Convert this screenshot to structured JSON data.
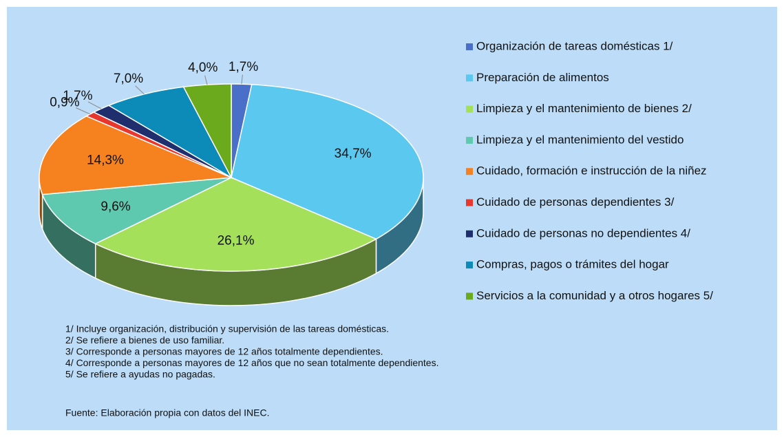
{
  "chart_data": {
    "type": "pie3d",
    "categories": [
      "Organización de tareas domésticas 1/",
      "Preparación de alimentos",
      "Limpieza y el mantenimiento de bienes 2/",
      "Limpieza y el mantenimiento del vestido",
      "Cuidado, formación e instrucción de la niñez",
      "Cuidado de personas dependientes 3/",
      "Cuidado de personas no dependientes 4/",
      "Compras, pagos o trámites del hogar",
      "Servicios a la comunidad y a otros hogares 5/"
    ],
    "values": [
      1.7,
      34.7,
      26.1,
      9.6,
      14.3,
      0.9,
      1.7,
      7.0,
      4.0
    ],
    "value_labels": [
      "1,7%",
      "34,7%",
      "26,1%",
      "9,6%",
      "14,3%",
      "0,9%",
      "1,7%",
      "7,0%",
      "4,0%"
    ],
    "colors": [
      "#4a6fc8",
      "#5bc8ef",
      "#a4e05a",
      "#5ec9ae",
      "#f5821f",
      "#e8382e",
      "#1f2f6e",
      "#0d8bb8",
      "#6aaa1c"
    ],
    "legend": "right",
    "notes": [
      "1/ Incluye organización, distribución y supervisión de las tareas domésticas.",
      "2/ Se refiere a bienes de uso familiar.",
      "3/ Corresponde a personas mayores de 12 años totalmente dependientes.",
      "4/ Corresponde a personas mayores de 12 años que no sean totalmente dependientes.",
      "5/ Se refiere a ayudas no pagadas."
    ],
    "source": "Fuente: Elaboración propia con datos del INEC."
  }
}
